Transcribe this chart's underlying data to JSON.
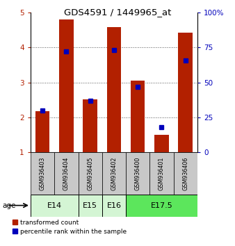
{
  "title": "GDS4591 / 1449965_at",
  "samples": [
    "GSM936403",
    "GSM936404",
    "GSM936405",
    "GSM936402",
    "GSM936400",
    "GSM936401",
    "GSM936406"
  ],
  "transformed_count": [
    2.18,
    4.8,
    2.52,
    4.57,
    3.06,
    1.5,
    4.42
  ],
  "percentile_rank": [
    2.2,
    3.88,
    2.48,
    3.92,
    2.88,
    1.72,
    3.62
  ],
  "age_groups": [
    {
      "label": "E14",
      "start": 0,
      "end": 2,
      "color": "#d4f5d4"
    },
    {
      "label": "E15",
      "start": 2,
      "end": 3,
      "color": "#d4f5d4"
    },
    {
      "label": "E16",
      "start": 3,
      "end": 4,
      "color": "#d4f5d4"
    },
    {
      "label": "E17.5",
      "start": 4,
      "end": 7,
      "color": "#5ce65c"
    }
  ],
  "ylim": [
    1,
    5
  ],
  "yticks_left": [
    1,
    2,
    3,
    4,
    5
  ],
  "yticks_right": [
    0,
    25,
    50,
    75,
    100
  ],
  "bar_color": "#b22000",
  "dot_color": "#0000bb",
  "sample_bg_color": "#c8c8c8",
  "grid_color": "#555555",
  "figsize": [
    3.38,
    3.54
  ],
  "dpi": 100
}
